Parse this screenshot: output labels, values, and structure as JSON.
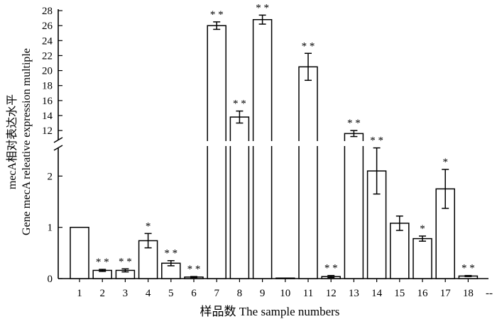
{
  "chart_data": {
    "type": "bar",
    "xlabel": "样品数 The sample numbers",
    "ylabel_cn": "mecA相对表达水平",
    "ylabel_en": "Gene mecA releative expression multiple",
    "trailing_xtick": "--",
    "axis_break": true,
    "lower_segment": {
      "ylim": [
        0,
        2.6
      ],
      "ticks": [
        0,
        1,
        2
      ]
    },
    "upper_segment": {
      "ylim": [
        10.5,
        28
      ],
      "ticks": [
        12,
        14,
        16,
        18,
        20,
        22,
        24,
        26,
        28
      ]
    },
    "bar_fill": "#ffffff",
    "bar_stroke": "#000000",
    "bars": [
      {
        "label": "1",
        "value": 1.0,
        "error": 0,
        "sig": ""
      },
      {
        "label": "2",
        "value": 0.16,
        "error": 0.02,
        "sig": "**"
      },
      {
        "label": "3",
        "value": 0.16,
        "error": 0.03,
        "sig": "**"
      },
      {
        "label": "4",
        "value": 0.74,
        "error": 0.14,
        "sig": "*"
      },
      {
        "label": "5",
        "value": 0.3,
        "error": 0.05,
        "sig": "**"
      },
      {
        "label": "6",
        "value": 0.03,
        "error": 0.01,
        "sig": "**"
      },
      {
        "label": "7",
        "value": 26.0,
        "error": 0.5,
        "sig": "**"
      },
      {
        "label": "8",
        "value": 13.8,
        "error": 0.8,
        "sig": "**"
      },
      {
        "label": "9",
        "value": 26.8,
        "error": 0.6,
        "sig": "**"
      },
      {
        "label": "10",
        "value": 0.01,
        "error": 0,
        "sig": ""
      },
      {
        "label": "11",
        "value": 20.5,
        "error": 1.8,
        "sig": "**"
      },
      {
        "label": "12",
        "value": 0.04,
        "error": 0.02,
        "sig": "**"
      },
      {
        "label": "13",
        "value": 11.6,
        "error": 0.4,
        "sig": "**"
      },
      {
        "label": "14",
        "value": 2.1,
        "error": 0.45,
        "sig": "**"
      },
      {
        "label": "15",
        "value": 1.08,
        "error": 0.14,
        "sig": ""
      },
      {
        "label": "16",
        "value": 0.78,
        "error": 0.05,
        "sig": "*"
      },
      {
        "label": "17",
        "value": 1.75,
        "error": 0.38,
        "sig": "*"
      },
      {
        "label": "18",
        "value": 0.05,
        "error": 0.01,
        "sig": "**"
      }
    ]
  }
}
